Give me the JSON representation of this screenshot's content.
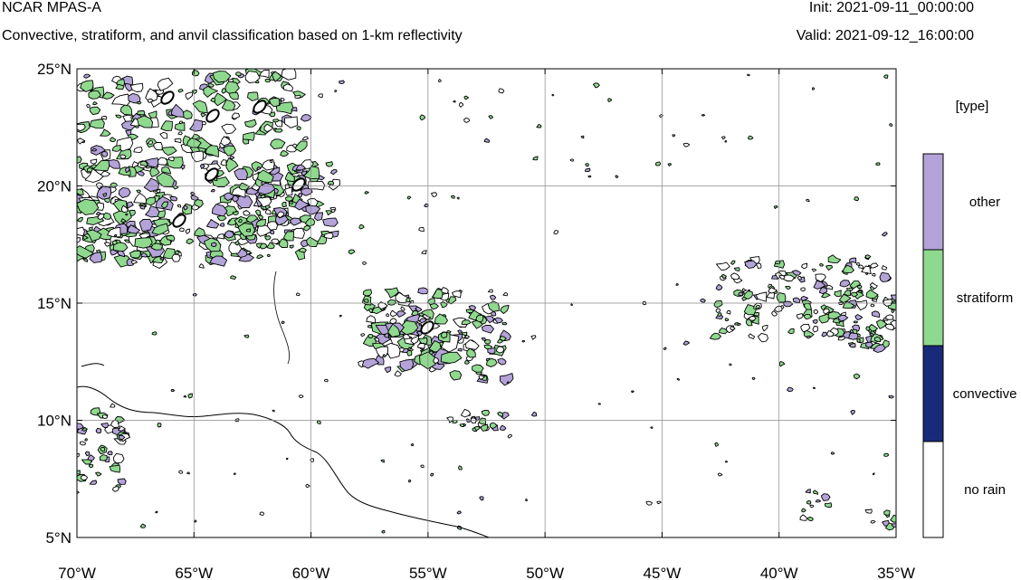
{
  "header": {
    "model": "NCAR MPAS-A",
    "description": "Convective, stratiform, and anvil classification based on 1-km reflectivity",
    "init": "Init: 2021-09-11_00:00:00",
    "valid": "Valid: 2021-09-12_16:00:00"
  },
  "map": {
    "lon_range": [
      -70,
      -35
    ],
    "lat_range": [
      5,
      25
    ],
    "lon_ticks": [
      -70,
      -65,
      -60,
      -55,
      -50,
      -45,
      -40,
      -35
    ],
    "lat_ticks": [
      5,
      10,
      15,
      20,
      25
    ],
    "lon_labels": [
      "70°W",
      "65°W",
      "60°W",
      "55°W",
      "50°W",
      "45°W",
      "40°W",
      "35°W"
    ],
    "lat_labels": [
      "5°N",
      "10°N",
      "15°N",
      "20°N",
      "25°N"
    ],
    "grid": true
  },
  "legend": {
    "title": "[type]",
    "items": [
      {
        "label": "other",
        "color": "#b3a3d8"
      },
      {
        "label": "stratiform",
        "color": "#8fd98f"
      },
      {
        "label": "convective",
        "color": "#1a2a7a"
      },
      {
        "label": "no rain",
        "color": "#ffffff"
      }
    ]
  },
  "colors": {
    "other": "#b3a3d8",
    "stratiform": "#8fd98f",
    "convective": "#1a2a7a",
    "coast": "#000000",
    "grid": "#888888"
  }
}
